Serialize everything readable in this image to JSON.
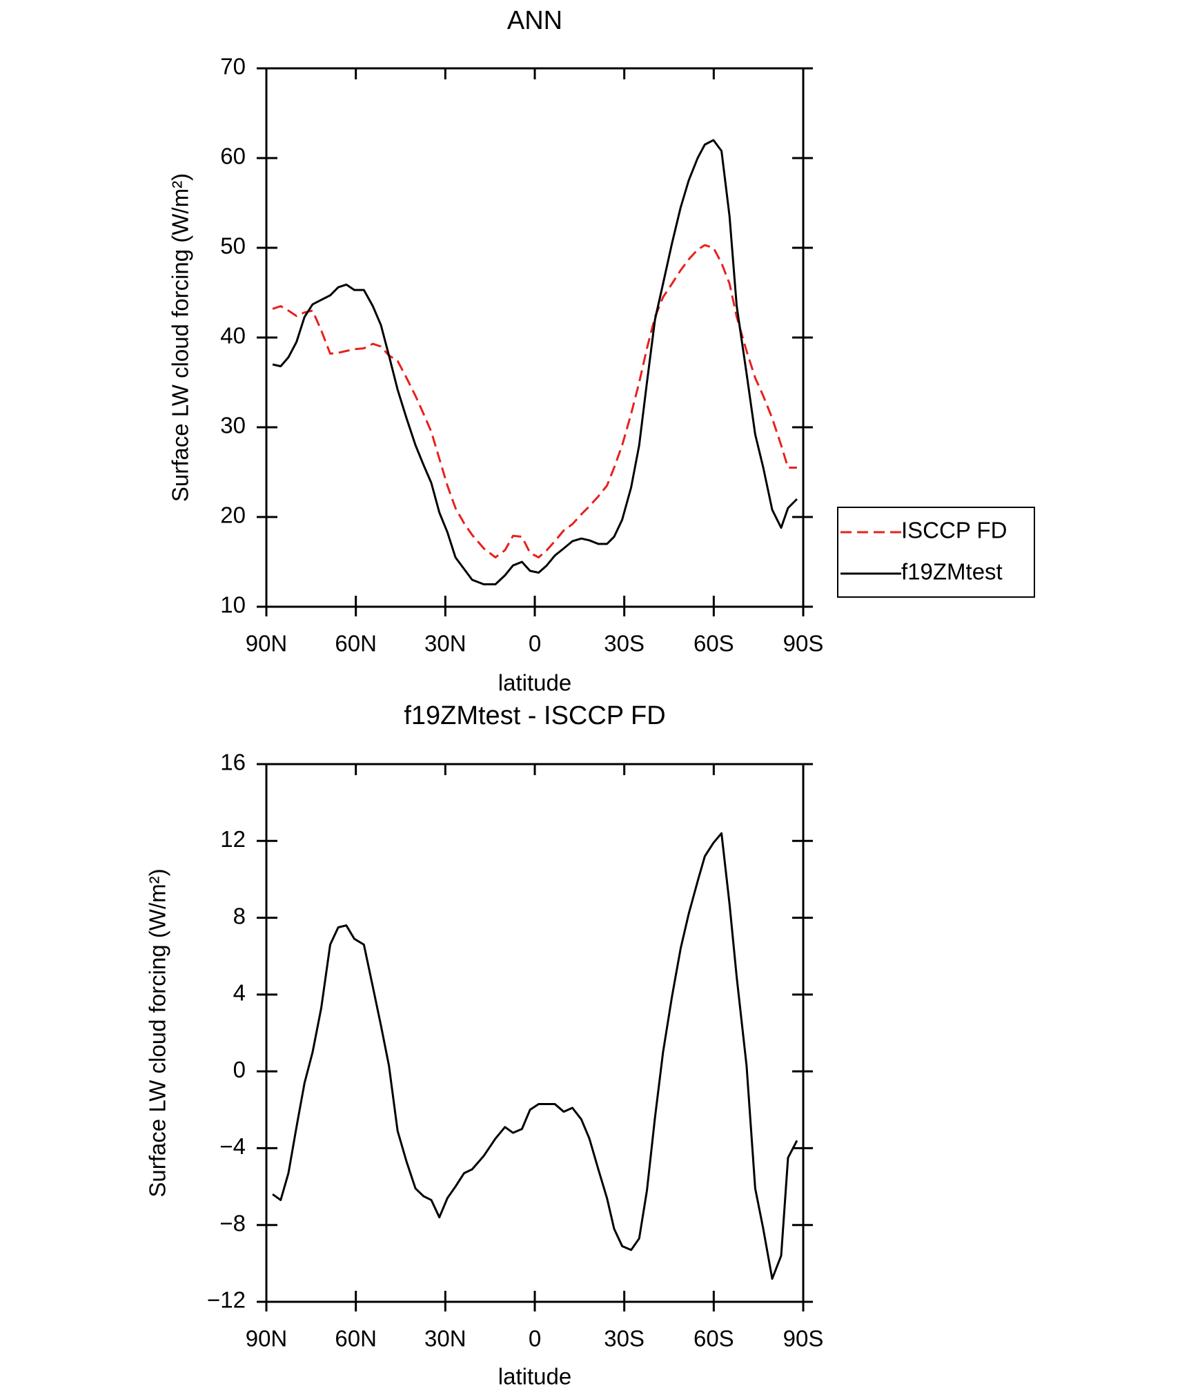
{
  "chart_data": [
    {
      "type": "line",
      "title": "ANN",
      "xlabel": "latitude",
      "ylabel": "Surface LW cloud forcing (W/m²)",
      "x": [
        87.9,
        85.2,
        82.6,
        79.9,
        77.2,
        74.5,
        71.6,
        68.6,
        65.9,
        63.2,
        60.5,
        57.3,
        54.3,
        51.6,
        48.9,
        46.0,
        43.0,
        40.0,
        37.3,
        34.7,
        32.0,
        29.3,
        26.6,
        23.7,
        21.0,
        17.1,
        13.2,
        10.0,
        7.3,
        4.3,
        1.6,
        -1.3,
        -4.0,
        -6.7,
        -9.7,
        -12.6,
        -15.6,
        -18.3,
        -21.3,
        -24.2,
        -26.6,
        -29.3,
        -32.3,
        -35.0,
        -37.6,
        -40.3,
        -43.0,
        -46.0,
        -48.9,
        -51.6,
        -54.6,
        -57.0,
        -59.9,
        -62.6,
        -65.3,
        -67.7,
        -71.0,
        -73.9,
        -76.6,
        -79.6,
        -82.6,
        -84.9,
        -87.9
      ],
      "series": [
        {
          "name": "ISCCP FD",
          "color": "#e8201c",
          "dashed": true,
          "values": [
            43.2,
            43.5,
            43.0,
            42.4,
            42.8,
            43.0,
            40.8,
            38.2,
            38.3,
            38.5,
            38.7,
            38.8,
            39.3,
            39.0,
            38.0,
            37.4,
            35.5,
            33.5,
            31.5,
            29.5,
            26.5,
            23.5,
            21.0,
            19.3,
            18.0,
            16.5,
            15.5,
            16.3,
            17.9,
            17.8,
            16.0,
            15.5,
            16.3,
            17.3,
            18.5,
            19.2,
            20.3,
            21.2,
            22.3,
            23.5,
            25.5,
            28.0,
            31.5,
            35.0,
            38.8,
            42.3,
            44.5,
            46.0,
            47.5,
            48.7,
            49.8,
            50.3,
            50.0,
            48.3,
            46.0,
            42.3,
            38.5,
            35.5,
            33.5,
            31.0,
            28.0,
            25.5,
            25.5
          ]
        },
        {
          "name": "f19ZMtest",
          "color": "#000000",
          "dashed": false,
          "values": [
            37.0,
            36.8,
            37.8,
            39.5,
            42.3,
            43.7,
            44.2,
            44.7,
            45.6,
            45.9,
            45.3,
            45.3,
            43.5,
            41.4,
            38.0,
            34.2,
            31.0,
            28.0,
            25.8,
            23.8,
            20.5,
            18.3,
            15.5,
            14.2,
            13.0,
            12.5,
            12.5,
            13.5,
            14.6,
            15.0,
            14.0,
            13.8,
            14.6,
            15.7,
            16.5,
            17.3,
            17.6,
            17.4,
            17.0,
            17.0,
            17.8,
            19.7,
            23.3,
            28.0,
            35.0,
            42.0,
            46.0,
            50.5,
            54.5,
            57.5,
            60.0,
            61.5,
            62.0,
            60.8,
            53.5,
            43.5,
            36.0,
            29.2,
            25.5,
            20.8,
            18.8,
            21.0,
            22.0
          ]
        }
      ],
      "xlim": [
        90,
        -90
      ],
      "xticks": [
        {
          "value": 90,
          "label": "90N"
        },
        {
          "value": 60,
          "label": "60N"
        },
        {
          "value": 30,
          "label": "30N"
        },
        0,
        {
          "value": -30,
          "label": "30S"
        },
        {
          "value": -60,
          "label": "60S"
        },
        {
          "value": -90,
          "label": "90S"
        }
      ],
      "ylim": [
        10,
        70
      ],
      "yticks": [
        10,
        20,
        30,
        40,
        50,
        60,
        70
      ],
      "legend": "right"
    },
    {
      "type": "line",
      "title": "f19ZMtest - ISCCP FD",
      "xlabel": "latitude",
      "ylabel": "Surface LW cloud forcing (W/m²)",
      "x": [
        87.9,
        85.2,
        82.6,
        79.9,
        77.2,
        74.5,
        71.6,
        68.6,
        65.9,
        63.2,
        60.5,
        57.3,
        54.3,
        51.6,
        48.9,
        46.0,
        43.0,
        40.0,
        37.3,
        34.7,
        32.0,
        29.3,
        26.6,
        23.7,
        21.0,
        17.1,
        13.2,
        10.0,
        7.3,
        4.3,
        1.6,
        -1.3,
        -4.0,
        -6.7,
        -9.7,
        -12.6,
        -15.6,
        -18.3,
        -21.3,
        -24.2,
        -26.6,
        -29.3,
        -32.3,
        -35.0,
        -37.6,
        -40.3,
        -43.0,
        -46.0,
        -48.9,
        -51.6,
        -54.6,
        -57.0,
        -59.9,
        -62.6,
        -65.3,
        -67.7,
        -71.0,
        -73.9,
        -76.6,
        -79.6,
        -82.6,
        -84.9,
        -87.9
      ],
      "series": [
        {
          "color": "#000000",
          "dashed": false,
          "values": [
            -6.4,
            -6.7,
            -5.3,
            -2.9,
            -0.6,
            1.0,
            3.3,
            6.6,
            7.5,
            7.6,
            6.9,
            6.6,
            4.4,
            2.4,
            0.3,
            -3.1,
            -4.7,
            -6.1,
            -6.5,
            -6.7,
            -7.6,
            -6.6,
            -6.0,
            -5.3,
            -5.1,
            -4.4,
            -3.5,
            -2.9,
            -3.2,
            -3.0,
            -2.0,
            -1.7,
            -1.7,
            -1.7,
            -2.1,
            -1.9,
            -2.5,
            -3.5,
            -5.1,
            -6.6,
            -8.2,
            -9.1,
            -9.3,
            -8.7,
            -6.2,
            -2.4,
            1.0,
            3.9,
            6.4,
            8.2,
            9.9,
            11.2,
            11.9,
            12.4,
            8.7,
            4.9,
            0.3,
            -6.1,
            -8.2,
            -10.8,
            -9.6,
            -4.5,
            -3.6
          ]
        }
      ],
      "xlim": [
        90,
        -90
      ],
      "xticks": [
        {
          "value": 90,
          "label": "90N"
        },
        {
          "value": 60,
          "label": "60N"
        },
        {
          "value": 30,
          "label": "30N"
        },
        0,
        {
          "value": -30,
          "label": "30S"
        },
        {
          "value": -60,
          "label": "60S"
        },
        {
          "value": -90,
          "label": "90S"
        }
      ],
      "ylim": [
        -12,
        16
      ],
      "yticks": [
        {
          "value": -12,
          "label": "−12"
        },
        {
          "value": -8,
          "label": "−8"
        },
        {
          "value": -4,
          "label": "−4"
        },
        0,
        4,
        8,
        12,
        16
      ]
    }
  ]
}
